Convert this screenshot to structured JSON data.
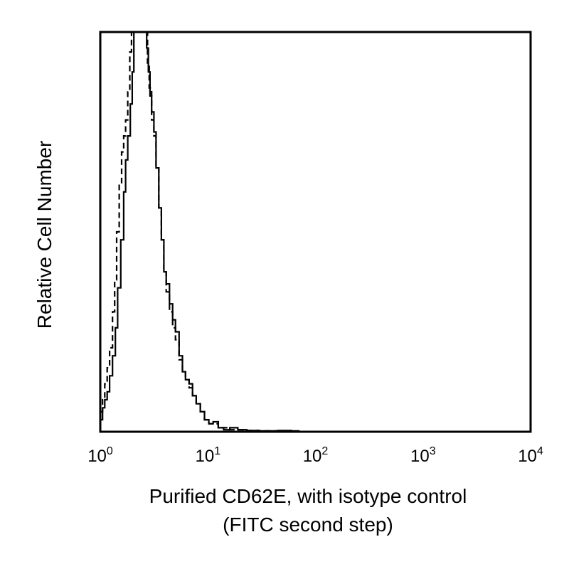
{
  "chart_data": {
    "type": "line",
    "title": "",
    "xlabel_line1": "Purified CD62E, with isotype control",
    "xlabel_line2": "(FITC second step)",
    "ylabel": "Relative Cell Number",
    "x_scale": "log",
    "xlim": [
      1,
      10000
    ],
    "ylim": [
      0,
      100
    ],
    "grid": false,
    "legend": "none",
    "x_ticks": [
      {
        "base": "10",
        "exp": "0",
        "value": 1
      },
      {
        "base": "10",
        "exp": "1",
        "value": 10
      },
      {
        "base": "10",
        "exp": "2",
        "value": 100
      },
      {
        "base": "10",
        "exp": "3",
        "value": 1000
      },
      {
        "base": "10",
        "exp": "4",
        "value": 10000
      }
    ],
    "series": [
      {
        "style": "solid",
        "color": "#000000",
        "x": [
          1.0,
          1.05,
          1.1,
          1.16,
          1.22,
          1.3,
          1.38,
          1.45,
          1.55,
          1.65,
          1.72,
          1.8,
          1.9,
          1.98,
          2.05,
          2.12,
          2.2,
          2.35,
          2.5,
          2.6,
          2.7,
          2.8,
          2.9,
          3.0,
          3.15,
          3.3,
          3.5,
          3.7,
          3.9,
          4.1,
          4.4,
          4.7,
          5.0,
          5.4,
          5.8,
          6.2,
          6.7,
          7.2,
          7.8,
          8.5,
          9.3,
          10.2,
          11.2,
          12.5,
          14,
          16,
          19,
          23,
          30,
          45,
          60,
          70
        ],
        "y": [
          3,
          6,
          8,
          10,
          14,
          19,
          26,
          36,
          48,
          60,
          68,
          74,
          82,
          90,
          100,
          100,
          100,
          100,
          100,
          100,
          96,
          90,
          84,
          80,
          75,
          66,
          56,
          48,
          40,
          37,
          32,
          28,
          25,
          19,
          15,
          13,
          12,
          9,
          7,
          5,
          3,
          2,
          2.5,
          1,
          0.5,
          1,
          0.5,
          0.3,
          0.2,
          0.3,
          0.2,
          0
        ]
      },
      {
        "style": "dashed",
        "color": "#000000",
        "x": [
          1.0,
          1.05,
          1.1,
          1.16,
          1.22,
          1.3,
          1.36,
          1.42,
          1.5,
          1.58,
          1.65,
          1.72,
          1.8,
          1.88,
          1.95,
          2.0,
          2.2,
          2.4,
          2.6,
          2.75,
          2.85,
          3.0,
          3.15,
          3.3,
          3.5,
          3.7,
          3.9,
          4.1,
          4.4,
          4.7,
          5.0,
          5.4,
          5.8,
          6.2,
          6.7,
          7.2,
          7.8,
          8.5,
          9.3,
          10.2,
          11.2,
          12.5,
          14,
          16,
          19,
          23,
          30,
          45
        ],
        "y": [
          5,
          8,
          12,
          16,
          21,
          30,
          38,
          50,
          62,
          70,
          74,
          78,
          85,
          95,
          100,
          100,
          100,
          100,
          100,
          92,
          86,
          78,
          74,
          66,
          56,
          48,
          40,
          35,
          30,
          26,
          23,
          18,
          15,
          13,
          11,
          9,
          7,
          5,
          3,
          2,
          2,
          1,
          1,
          0.5,
          0.5,
          0.3,
          0.2,
          0
        ]
      }
    ]
  }
}
